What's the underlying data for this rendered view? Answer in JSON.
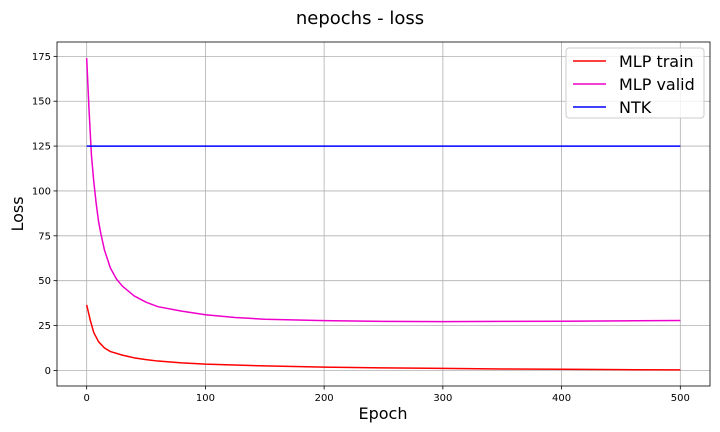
{
  "chart_data": {
    "type": "line",
    "title": "nepochs - loss",
    "xlabel": "Epoch",
    "ylabel": "Loss",
    "xlim": [
      -25,
      525
    ],
    "ylim": [
      -8.7,
      183
    ],
    "xticks": [
      0,
      100,
      200,
      300,
      400,
      500
    ],
    "yticks": [
      0,
      25,
      50,
      75,
      100,
      125,
      150,
      175
    ],
    "grid": true,
    "legend_position": "top-right",
    "series": [
      {
        "name": "MLP train",
        "color": "#ff0000",
        "x": [
          0,
          3,
          6,
          10,
          15,
          20,
          30,
          40,
          50,
          60,
          80,
          100,
          150,
          200,
          250,
          300,
          350,
          400,
          450,
          500
        ],
        "values": [
          36.5,
          28.0,
          21.0,
          16.0,
          12.5,
          10.5,
          8.5,
          7.0,
          6.0,
          5.2,
          4.2,
          3.5,
          2.5,
          1.8,
          1.4,
          1.1,
          0.8,
          0.6,
          0.4,
          0.3
        ]
      },
      {
        "name": "MLP valid",
        "color": "#ee00cc",
        "x": [
          0,
          2,
          4,
          6,
          8,
          10,
          12,
          15,
          20,
          25,
          30,
          40,
          50,
          60,
          80,
          100,
          125,
          150,
          200,
          250,
          300,
          350,
          400,
          450,
          500
        ],
        "values": [
          174.0,
          145.0,
          120.0,
          105.0,
          93.0,
          83.0,
          76.0,
          67.0,
          57.0,
          51.0,
          47.0,
          41.5,
          38.0,
          35.5,
          33.0,
          31.0,
          29.5,
          28.5,
          27.7,
          27.3,
          27.2,
          27.3,
          27.4,
          27.6,
          27.8
        ]
      },
      {
        "name": "NTK",
        "color": "#0000ff",
        "x": [
          0,
          500
        ],
        "values": [
          125.0,
          125.0
        ]
      }
    ]
  }
}
